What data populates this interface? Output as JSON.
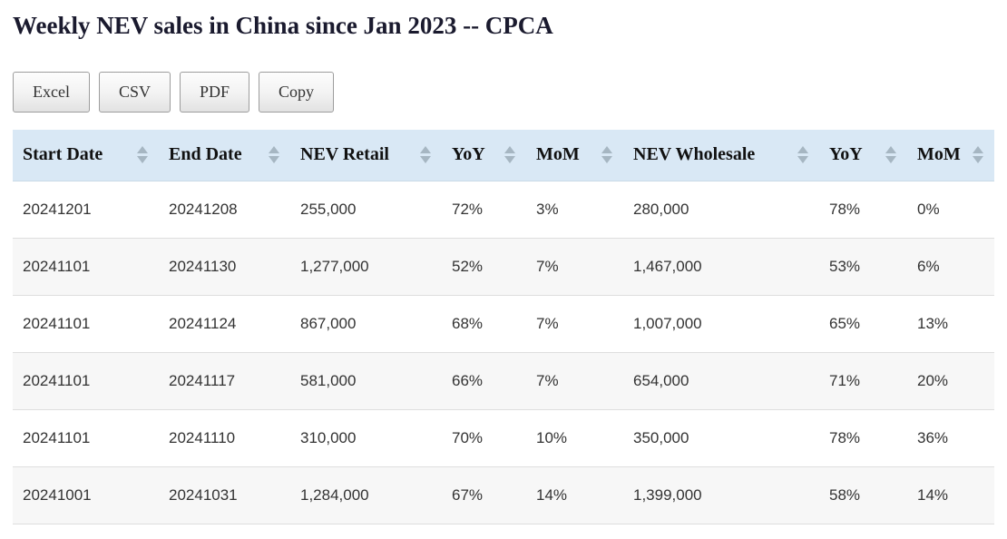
{
  "page": {
    "title": "Weekly NEV sales in China since Jan 2023 -- CPCA"
  },
  "toolbar": {
    "buttons": [
      "Excel",
      "CSV",
      "PDF",
      "Copy"
    ]
  },
  "table": {
    "columns": [
      "Start Date",
      "End Date",
      "NEV Retail",
      "YoY",
      "MoM",
      "NEV Wholesale",
      "YoY",
      "MoM"
    ],
    "rows": [
      [
        "20241201",
        "20241208",
        "255,000",
        "72%",
        "3%",
        "280,000",
        "78%",
        "0%"
      ],
      [
        "20241101",
        "20241130",
        "1,277,000",
        "52%",
        "7%",
        "1,467,000",
        "53%",
        "6%"
      ],
      [
        "20241101",
        "20241124",
        "867,000",
        "68%",
        "7%",
        "1,007,000",
        "65%",
        "13%"
      ],
      [
        "20241101",
        "20241117",
        "581,000",
        "66%",
        "7%",
        "654,000",
        "71%",
        "20%"
      ],
      [
        "20241101",
        "20241110",
        "310,000",
        "70%",
        "10%",
        "350,000",
        "78%",
        "36%"
      ],
      [
        "20241001",
        "20241031",
        "1,284,000",
        "67%",
        "14%",
        "1,399,000",
        "58%",
        "14%"
      ]
    ]
  },
  "colors": {
    "header_bg": "#d9e8f5",
    "row_alt_bg": "#f7f7f7",
    "border": "#dedede",
    "title_text": "#1a1a2e",
    "sort_arrow": "#a6b6c2"
  }
}
